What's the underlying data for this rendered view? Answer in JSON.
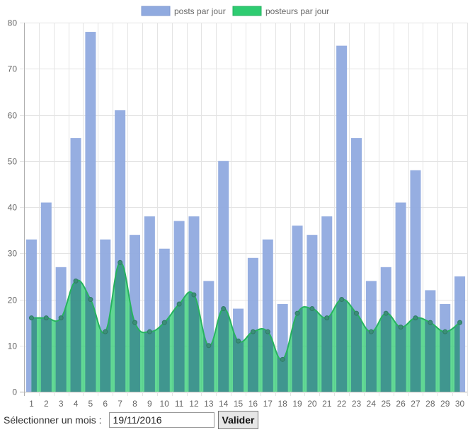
{
  "chart_data": {
    "type": "bar",
    "categories": [
      "1",
      "2",
      "3",
      "4",
      "5",
      "6",
      "7",
      "8",
      "9",
      "10",
      "11",
      "12",
      "13",
      "14",
      "15",
      "16",
      "17",
      "18",
      "19",
      "20",
      "21",
      "22",
      "23",
      "24",
      "25",
      "26",
      "27",
      "28",
      "29",
      "30"
    ],
    "series": [
      {
        "name": "posts par jour",
        "type": "bar",
        "color": "#90aadf",
        "values": [
          33,
          41,
          27,
          55,
          78,
          33,
          61,
          34,
          38,
          31,
          37,
          38,
          24,
          50,
          18,
          29,
          33,
          19,
          36,
          34,
          38,
          75,
          55,
          24,
          27,
          41,
          48,
          22,
          19,
          25
        ]
      },
      {
        "name": "posteurs par jour",
        "type": "area",
        "color": "#2ecc71",
        "values": [
          16,
          16,
          16,
          24,
          20,
          13,
          28,
          15,
          13,
          15,
          19,
          21,
          10,
          18,
          11,
          13,
          13,
          7,
          17,
          18,
          16,
          20,
          17,
          13,
          17,
          14,
          16,
          15,
          13,
          15
        ]
      }
    ],
    "ylim": [
      0,
      80
    ],
    "yticks": [
      0,
      10,
      20,
      30,
      40,
      50,
      60,
      70,
      80
    ],
    "grid": true,
    "legend_position": "top-center"
  },
  "form": {
    "label": "Sélectionner un mois :",
    "date_value": "19/11/2016",
    "submit_label": "Valider"
  }
}
